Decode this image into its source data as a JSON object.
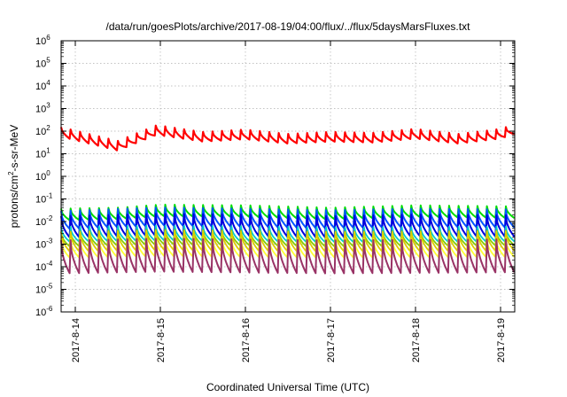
{
  "chart_data": {
    "type": "line",
    "title": "/data/run/goesPlots/archive/2017-08-19/04:00/flux/../flux/5daysMarsFluxes.txt",
    "xlabel": "Coordinated Universal Time (UTC)",
    "ylabel": {
      "base": "protons/cm",
      "sup": "2",
      "rest": "-s-sr-MeV"
    },
    "yscale": "log",
    "ylim": [
      1e-06,
      1000000.0
    ],
    "y_ticks": [
      {
        "base": "10",
        "exp": "-6",
        "value": 1e-06
      },
      {
        "base": "10",
        "exp": "-5",
        "value": 1e-05
      },
      {
        "base": "10",
        "exp": "-4",
        "value": 0.0001
      },
      {
        "base": "10",
        "exp": "-3",
        "value": 0.001
      },
      {
        "base": "10",
        "exp": "-2",
        "value": 0.01
      },
      {
        "base": "10",
        "exp": "-1",
        "value": 0.1
      },
      {
        "base": "10",
        "exp": "0",
        "value": 1
      },
      {
        "base": "10",
        "exp": "1",
        "value": 10
      },
      {
        "base": "10",
        "exp": "2",
        "value": 100
      },
      {
        "base": "10",
        "exp": "3",
        "value": 1000
      },
      {
        "base": "10",
        "exp": "4",
        "value": 10000
      },
      {
        "base": "10",
        "exp": "5",
        "value": 100000
      },
      {
        "base": "10",
        "exp": "6",
        "value": 1000000
      }
    ],
    "xlim": [
      "2017-08-13 20:00",
      "2017-08-19 04:00"
    ],
    "x_ticks": [
      "2017-8-14",
      "2017-8-15",
      "2017-8-16",
      "2017-8-17",
      "2017-8-18",
      "2017-8-19"
    ],
    "grid": true,
    "sawtooth_period_hours": 2.67,
    "series": [
      {
        "color": "#ff0000",
        "line_width": 2.2,
        "anchors": [
          [
            "2017-08-13 20:00",
            90
          ],
          [
            "2017-08-14 12:00",
            22
          ],
          [
            "2017-08-14 23:00",
            110
          ],
          [
            "2017-08-15 12:00",
            55
          ],
          [
            "2017-08-16 00:00",
            70
          ],
          [
            "2017-08-16 12:00",
            45
          ],
          [
            "2017-08-17 00:00",
            55
          ],
          [
            "2017-08-17 12:00",
            50
          ],
          [
            "2017-08-18 00:00",
            75
          ],
          [
            "2017-08-18 12:00",
            45
          ],
          [
            "2017-08-19 00:00",
            75
          ],
          [
            "2017-08-19 04:00",
            120
          ]
        ],
        "ratio": 2.8
      },
      {
        "color": "#00dd00",
        "line_width": 2,
        "anchors": [
          [
            "2017-08-13 20:00",
            0.02
          ],
          [
            "2017-08-14 12:00",
            0.022
          ],
          [
            "2017-08-15 00:00",
            0.03
          ],
          [
            "2017-08-16 00:00",
            0.028
          ],
          [
            "2017-08-17 00:00",
            0.022
          ],
          [
            "2017-08-18 00:00",
            0.028
          ],
          [
            "2017-08-19 04:00",
            0.025
          ]
        ],
        "ratio": 3.5
      },
      {
        "color": "#0055ff",
        "line_width": 2,
        "anchors": [
          [
            "2017-08-13 20:00",
            0.011
          ],
          [
            "2017-08-15 00:00",
            0.016
          ],
          [
            "2017-08-16 00:00",
            0.014
          ],
          [
            "2017-08-17 00:00",
            0.012
          ],
          [
            "2017-08-18 00:00",
            0.014
          ],
          [
            "2017-08-19 04:00",
            0.013
          ]
        ],
        "ratio": 7
      },
      {
        "color": "#0000dd",
        "line_width": 2,
        "anchors": [
          [
            "2017-08-13 20:00",
            0.0055
          ],
          [
            "2017-08-15 00:00",
            0.007
          ],
          [
            "2017-08-16 00:00",
            0.0065
          ],
          [
            "2017-08-17 00:00",
            0.0055
          ],
          [
            "2017-08-18 00:00",
            0.0065
          ],
          [
            "2017-08-19 04:00",
            0.006
          ]
        ],
        "ratio": 10
      },
      {
        "color": "#00cccc",
        "line_width": 1.8,
        "anchors": [
          [
            "2017-08-13 20:00",
            0.0026
          ],
          [
            "2017-08-15 00:00",
            0.003
          ],
          [
            "2017-08-16 00:00",
            0.0028
          ],
          [
            "2017-08-17 00:00",
            0.0025
          ],
          [
            "2017-08-19 04:00",
            0.0027
          ]
        ],
        "ratio": 5
      },
      {
        "color": "#88cc00",
        "line_width": 1.8,
        "anchors": [
          [
            "2017-08-13 20:00",
            0.0016
          ],
          [
            "2017-08-15 00:00",
            0.002
          ],
          [
            "2017-08-17 00:00",
            0.0016
          ],
          [
            "2017-08-19 04:00",
            0.0018
          ]
        ],
        "ratio": 5
      },
      {
        "color": "#ddcc00",
        "line_width": 1.8,
        "anchors": [
          [
            "2017-08-13 20:00",
            0.0012
          ],
          [
            "2017-08-15 00:00",
            0.0014
          ],
          [
            "2017-08-17 00:00",
            0.0012
          ],
          [
            "2017-08-19 04:00",
            0.0013
          ]
        ],
        "ratio": 8
      },
      {
        "color": "#ffff33",
        "line_width": 1.8,
        "anchors": [
          [
            "2017-08-13 20:00",
            0.0006
          ],
          [
            "2017-08-15 00:00",
            0.0007
          ],
          [
            "2017-08-17 00:00",
            0.0006
          ],
          [
            "2017-08-19 04:00",
            0.00065
          ]
        ],
        "ratio": 7
      },
      {
        "color": "#993366",
        "line_width": 2,
        "anchors": [
          [
            "2017-08-13 20:00",
            0.00025
          ],
          [
            "2017-08-15 00:00",
            0.0003
          ],
          [
            "2017-08-17 00:00",
            0.00025
          ],
          [
            "2017-08-19 04:00",
            0.00028
          ]
        ],
        "ratio": 35
      }
    ]
  }
}
